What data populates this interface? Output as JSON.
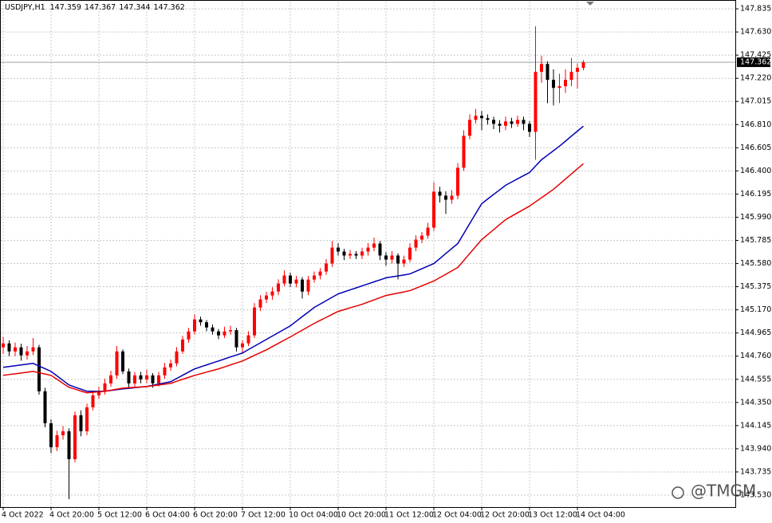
{
  "chart_data": {
    "type": "candlestick",
    "symbol": "USDJPY,H1",
    "last_bar": [
      147.359,
      147.367,
      147.344,
      147.362
    ],
    "current_price": 147.362,
    "watermark": "@TMGM",
    "up_color": "#ff0000",
    "down_color": "#000000",
    "grid": true,
    "ylim": [
      143.424,
      147.899
    ],
    "yticks": [
      147.835,
      {
        "value": 147.63,
        "label": "147.630"
      },
      147.425,
      {
        "value": 147.22,
        "label": "147.220"
      },
      147.015,
      {
        "value": 146.81,
        "label": "146.810"
      },
      146.605,
      {
        "value": 146.4,
        "label": "146.400"
      },
      146.195,
      {
        "value": 145.99,
        "label": "145.990"
      },
      145.785,
      {
        "value": 145.58,
        "label": "145.580"
      },
      145.375,
      {
        "value": 145.17,
        "label": "145.170"
      },
      144.965,
      {
        "value": 144.76,
        "label": "144.760"
      },
      144.555,
      {
        "value": 144.35,
        "label": "144.350"
      },
      144.145,
      {
        "value": 143.94,
        "label": "143.940"
      },
      143.735,
      {
        "value": 143.53,
        "label": "143.530"
      }
    ],
    "categories": [
      "4 Oct 2022",
      null,
      null,
      null,
      null,
      null,
      null,
      null,
      "4 Oct 20:00",
      null,
      null,
      null,
      null,
      null,
      null,
      null,
      "5 Oct 12:00",
      null,
      null,
      null,
      null,
      null,
      null,
      null,
      "6 Oct 04:00",
      null,
      null,
      null,
      null,
      null,
      null,
      null,
      "6 Oct 20:00",
      null,
      null,
      null,
      null,
      null,
      null,
      null,
      "7 Oct 12:00",
      null,
      null,
      null,
      null,
      null,
      null,
      null,
      "10 Oct 04:00",
      null,
      null,
      null,
      null,
      null,
      null,
      null,
      "10 Oct 20:00",
      null,
      null,
      null,
      null,
      null,
      null,
      null,
      "11 Oct 12:00",
      null,
      null,
      null,
      null,
      null,
      null,
      null,
      "12 Oct 04:00",
      null,
      null,
      null,
      null,
      null,
      null,
      null,
      "12 Oct 20:00",
      null,
      null,
      null,
      null,
      null,
      null,
      null,
      "13 Oct 12:00",
      null,
      null,
      null,
      null,
      null,
      null,
      null,
      "14 Oct 04:00",
      null
    ],
    "open": [
      144.838,
      144.873,
      144.802,
      144.838,
      144.767,
      144.802,
      144.838,
      144.449,
      144.166,
      143.954,
      144.06,
      144.095,
      143.848,
      144.237,
      144.095,
      144.307,
      144.413,
      144.449,
      144.519,
      144.59,
      144.802,
      144.625,
      144.519,
      144.59,
      144.555,
      144.59,
      144.519,
      144.59,
      144.661,
      144.696,
      144.802,
      144.908,
      144.979,
      145.085,
      145.06,
      145.014,
      144.979,
      144.944,
      144.979,
      144.99,
      144.838,
      144.873,
      144.944,
      145.191,
      145.262,
      145.297,
      145.332,
      145.403,
      145.474,
      145.403,
      145.438,
      145.332,
      145.438,
      145.474,
      145.509,
      145.58,
      145.721,
      145.686,
      145.651,
      145.665,
      145.651,
      145.686,
      145.721,
      145.757,
      145.651,
      145.615,
      145.651,
      145.58,
      145.615,
      145.721,
      145.792,
      145.827,
      145.898,
      146.216,
      146.181,
      146.145,
      146.181,
      146.428,
      146.711,
      146.852,
      146.888,
      146.867,
      146.852,
      146.817,
      146.8,
      146.838,
      146.817,
      146.852,
      146.817,
      146.746,
      147.277,
      147.347,
      147.206,
      147.135,
      147.15,
      147.206,
      147.277,
      147.312
    ],
    "high": [
      144.93,
      144.9,
      144.88,
      144.87,
      144.85,
      144.92,
      144.86,
      144.48,
      144.2,
      144.1,
      144.14,
      144.12,
      144.27,
      144.28,
      144.34,
      144.45,
      144.49,
      144.56,
      144.63,
      144.85,
      144.82,
      144.65,
      144.62,
      144.62,
      144.64,
      144.61,
      144.62,
      144.7,
      144.73,
      144.84,
      144.94,
      145.01,
      145.13,
      145.11,
      145.08,
      145.04,
      145.0,
      145.02,
      145.03,
      145.01,
      144.9,
      144.98,
      145.23,
      145.3,
      145.33,
      145.37,
      145.44,
      145.52,
      145.5,
      145.47,
      145.46,
      145.47,
      145.51,
      145.54,
      145.62,
      145.78,
      145.76,
      145.71,
      145.7,
      145.69,
      145.72,
      145.76,
      145.81,
      145.78,
      145.68,
      145.69,
      145.67,
      145.65,
      145.76,
      145.83,
      145.86,
      145.94,
      146.3,
      146.26,
      146.22,
      146.23,
      146.47,
      146.76,
      146.9,
      146.95,
      146.93,
      146.9,
      146.88,
      146.85,
      146.88,
      146.87,
      146.89,
      146.88,
      146.84,
      147.68,
      147.42,
      147.37,
      147.3,
      147.26,
      147.3,
      147.4,
      147.35,
      147.38
    ],
    "low": [
      144.78,
      144.76,
      144.76,
      144.72,
      144.73,
      144.77,
      144.42,
      144.13,
      143.9,
      143.92,
      144.02,
      143.494,
      143.82,
      144.05,
      144.06,
      144.28,
      144.38,
      144.42,
      144.49,
      144.56,
      144.6,
      144.48,
      144.49,
      144.52,
      144.52,
      144.48,
      144.49,
      144.56,
      144.63,
      144.67,
      144.78,
      144.88,
      144.95,
      145.03,
      144.98,
      144.95,
      144.91,
      144.92,
      144.95,
      144.8,
      144.78,
      144.85,
      144.92,
      145.16,
      145.23,
      145.26,
      145.3,
      145.38,
      145.37,
      145.37,
      145.27,
      145.3,
      145.41,
      145.44,
      145.48,
      145.55,
      145.65,
      145.61,
      145.62,
      145.62,
      145.62,
      145.65,
      145.69,
      145.61,
      145.56,
      145.58,
      145.44,
      145.55,
      145.59,
      145.69,
      145.76,
      145.8,
      145.87,
      146.12,
      146.02,
      146.11,
      146.15,
      146.4,
      146.68,
      146.82,
      146.76,
      146.81,
      146.77,
      146.74,
      146.76,
      146.78,
      146.79,
      146.76,
      146.7,
      146.499,
      147.18,
      147.0,
      146.98,
      147.0,
      147.09,
      147.15,
      147.13,
      147.29
    ],
    "close": [
      144.873,
      144.802,
      144.838,
      144.767,
      144.802,
      144.838,
      144.449,
      144.166,
      143.954,
      144.06,
      144.095,
      143.848,
      144.237,
      144.095,
      144.307,
      144.413,
      144.449,
      144.519,
      144.59,
      144.802,
      144.625,
      144.519,
      144.59,
      144.555,
      144.59,
      144.519,
      144.59,
      144.661,
      144.696,
      144.802,
      144.908,
      144.979,
      145.085,
      145.06,
      145.014,
      144.979,
      144.944,
      144.979,
      144.99,
      144.838,
      144.873,
      144.944,
      145.191,
      145.262,
      145.297,
      145.332,
      145.403,
      145.474,
      145.403,
      145.438,
      145.332,
      145.438,
      145.474,
      145.509,
      145.58,
      145.721,
      145.686,
      145.651,
      145.665,
      145.651,
      145.686,
      145.721,
      145.757,
      145.651,
      145.615,
      145.651,
      145.58,
      145.615,
      145.721,
      145.792,
      145.827,
      145.898,
      146.216,
      146.181,
      146.145,
      146.181,
      146.428,
      146.711,
      146.852,
      146.888,
      146.867,
      146.852,
      146.817,
      146.8,
      146.838,
      146.817,
      146.852,
      146.817,
      146.746,
      147.277,
      147.347,
      147.206,
      147.135,
      147.15,
      147.206,
      147.277,
      147.312,
      147.362
    ],
    "lines": [
      {
        "color": "#0000b4",
        "values": [
          144.661,
          144.668,
          144.675,
          144.682,
          144.689,
          144.696,
          144.672,
          144.649,
          144.625,
          144.585,
          144.545,
          144.505,
          144.486,
          144.468,
          144.449,
          144.449,
          144.449,
          144.449,
          144.456,
          144.463,
          144.47,
          144.475,
          144.481,
          144.486,
          144.491,
          144.502,
          144.513,
          144.523,
          144.534,
          144.562,
          144.591,
          144.619,
          144.647,
          144.665,
          144.682,
          144.7,
          144.717,
          144.735,
          144.753,
          144.77,
          144.788,
          144.818,
          144.848,
          144.878,
          144.908,
          144.938,
          144.968,
          144.998,
          145.028,
          145.069,
          145.11,
          145.15,
          145.191,
          145.221,
          145.251,
          145.281,
          145.311,
          145.329,
          145.347,
          145.364,
          145.382,
          145.4,
          145.418,
          145.435,
          145.453,
          145.462,
          145.47,
          145.479,
          145.488,
          145.511,
          145.534,
          145.557,
          145.58,
          145.624,
          145.669,
          145.713,
          145.757,
          145.845,
          145.934,
          146.022,
          146.11,
          146.151,
          146.192,
          146.232,
          146.273,
          146.301,
          146.33,
          146.358,
          146.386,
          146.443,
          146.499,
          146.539,
          146.579,
          146.619,
          146.663,
          146.708,
          146.752,
          146.796
        ]
      },
      {
        "color": "#e60000",
        "values": [
          144.59,
          144.597,
          144.604,
          144.611,
          144.618,
          144.625,
          144.613,
          144.602,
          144.59,
          144.555,
          144.519,
          144.484,
          144.468,
          144.451,
          144.435,
          144.44,
          144.444,
          144.449,
          144.458,
          144.468,
          144.477,
          144.481,
          144.484,
          144.488,
          144.491,
          144.498,
          144.505,
          144.512,
          144.519,
          144.537,
          144.555,
          144.572,
          144.59,
          144.604,
          144.619,
          144.633,
          144.647,
          144.665,
          144.682,
          144.7,
          144.717,
          144.742,
          144.767,
          144.791,
          144.816,
          144.845,
          144.873,
          144.902,
          144.93,
          144.96,
          144.99,
          145.02,
          145.05,
          145.077,
          145.103,
          145.13,
          145.156,
          145.172,
          145.188,
          145.203,
          145.219,
          145.239,
          145.258,
          145.278,
          145.297,
          145.308,
          145.318,
          145.329,
          145.34,
          145.361,
          145.382,
          145.404,
          145.425,
          145.455,
          145.485,
          145.515,
          145.545,
          145.607,
          145.669,
          145.73,
          145.792,
          145.836,
          145.88,
          145.925,
          145.969,
          145.999,
          146.029,
          146.059,
          146.089,
          146.126,
          146.163,
          146.2,
          146.237,
          146.282,
          146.328,
          146.373,
          146.419,
          146.464
        ]
      }
    ]
  }
}
